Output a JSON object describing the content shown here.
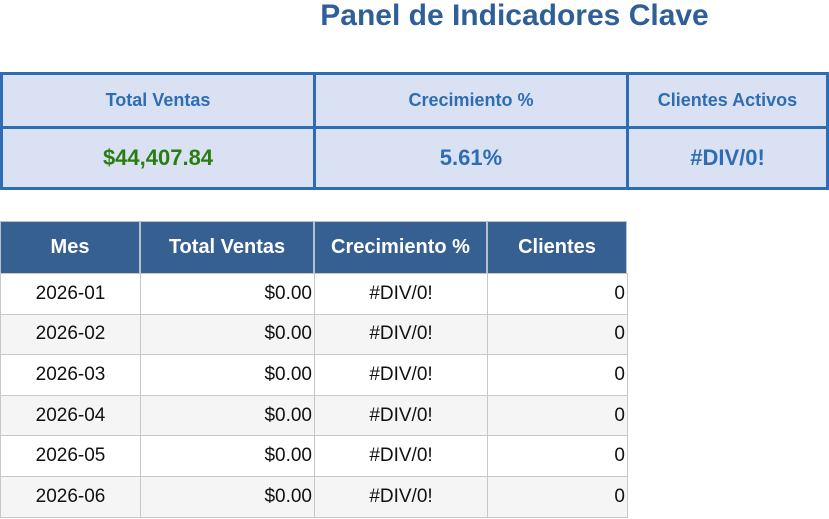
{
  "header": {
    "title": "Panel de Indicadores Clave"
  },
  "kpis": {
    "labels": [
      "Total Ventas",
      "Crecimiento %",
      "Clientes Activos"
    ],
    "values": [
      "$44,407.84",
      "5.61%",
      "#DIV/0!"
    ]
  },
  "table": {
    "columns": [
      "Mes",
      "Total Ventas",
      "Crecimiento %",
      "Clientes"
    ],
    "rows": [
      [
        "2026-01",
        "$0.00",
        "#DIV/0!",
        "0"
      ],
      [
        "2026-02",
        "$0.00",
        "#DIV/0!",
        "0"
      ],
      [
        "2026-03",
        "$0.00",
        "#DIV/0!",
        "0"
      ],
      [
        "2026-04",
        "$0.00",
        "#DIV/0!",
        "0"
      ],
      [
        "2026-05",
        "$0.00",
        "#DIV/0!",
        "0"
      ],
      [
        "2026-06",
        "$0.00",
        "#DIV/0!",
        "0"
      ]
    ]
  }
}
